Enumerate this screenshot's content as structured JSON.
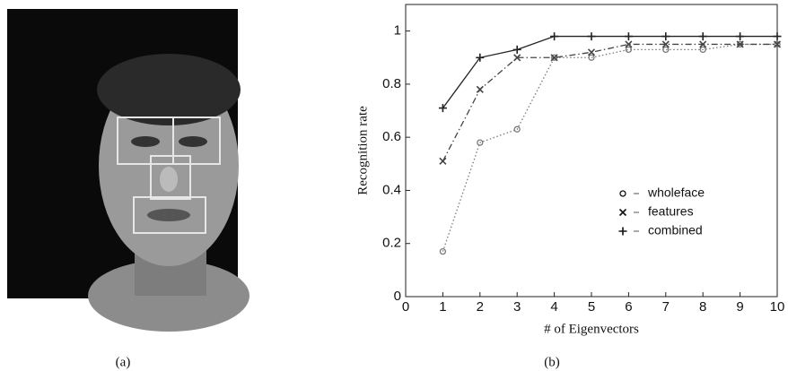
{
  "panels": [
    {
      "caption": "(a)"
    },
    {
      "caption": "(b)"
    }
  ],
  "chart_data": {
    "type": "line",
    "xlabel": "# of Eigenvectors",
    "ylabel": "Recognition rate",
    "x": [
      1,
      2,
      3,
      4,
      5,
      6,
      7,
      8,
      9,
      10
    ],
    "series": [
      {
        "name": "wholeface",
        "color": "#7a7a7a",
        "marker": "circle",
        "dash": "dotted",
        "values": [
          0.17,
          0.58,
          0.63,
          0.9,
          0.9,
          0.93,
          0.93,
          0.93,
          0.95,
          0.95
        ]
      },
      {
        "name": "features",
        "color": "#444444",
        "marker": "x",
        "dash": "dashdot",
        "values": [
          0.51,
          0.78,
          0.9,
          0.9,
          0.92,
          0.95,
          0.95,
          0.95,
          0.95,
          0.95
        ]
      },
      {
        "name": "combined",
        "color": "#222222",
        "marker": "plus",
        "dash": "solid",
        "values": [
          0.71,
          0.9,
          0.93,
          0.98,
          0.98,
          0.98,
          0.98,
          0.98,
          0.98,
          0.98
        ]
      }
    ],
    "xlim": [
      0,
      10
    ],
    "ylim": [
      0,
      1.1
    ],
    "xticks": [
      0,
      1,
      2,
      3,
      4,
      5,
      6,
      7,
      8,
      9,
      10
    ],
    "yticks": [
      0,
      0.2,
      0.4,
      0.6,
      0.8,
      1
    ],
    "grid": false,
    "legend": "right"
  }
}
